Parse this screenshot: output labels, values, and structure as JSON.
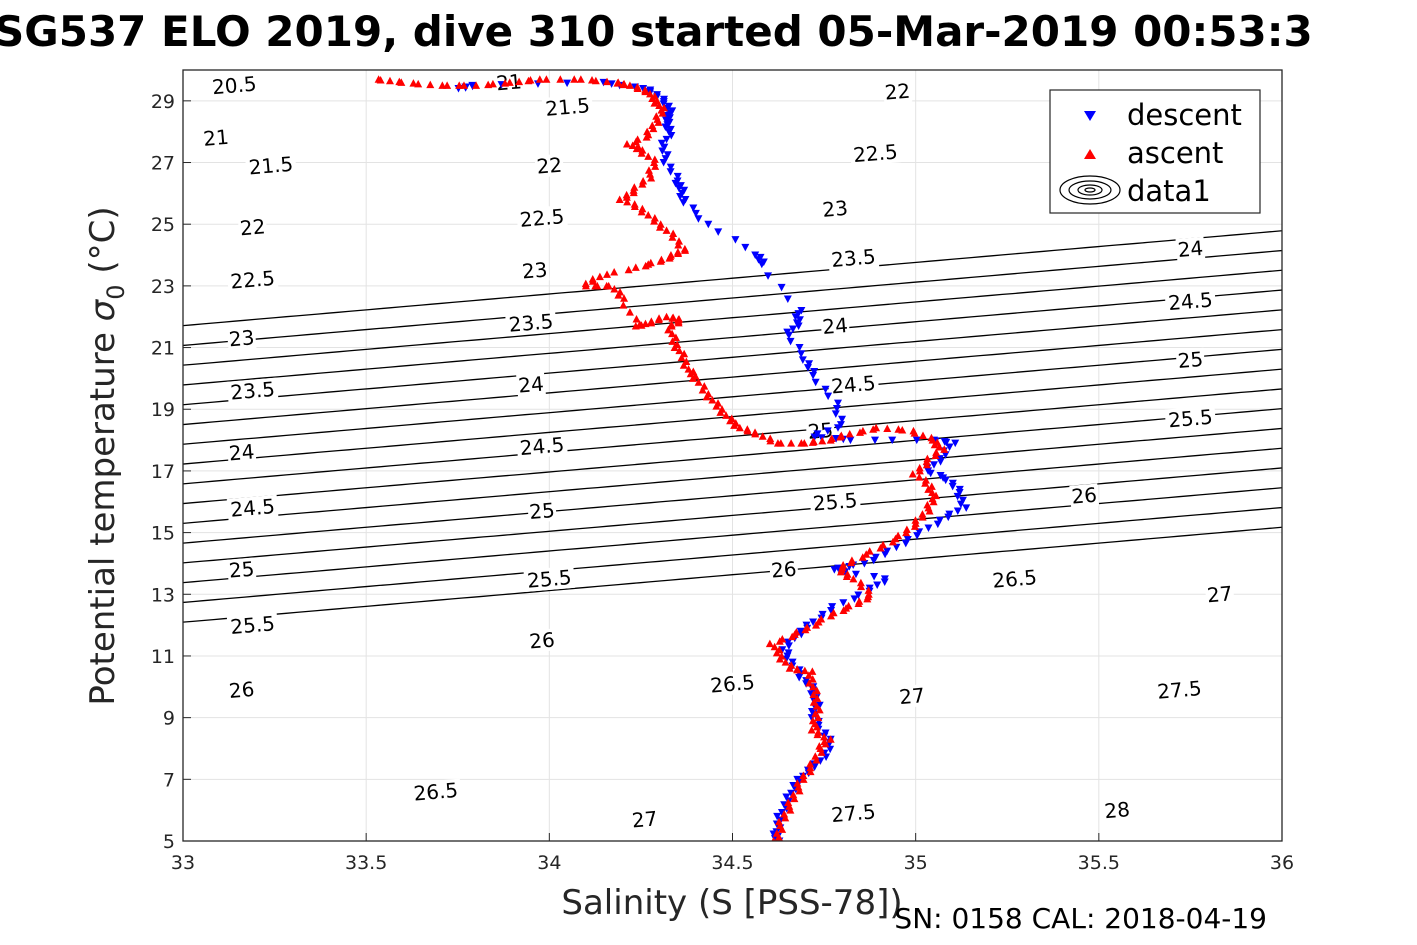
{
  "figure": {
    "title": "SG537 ELO 2019, dive 310 started 05-Mar-2019 00:53:3",
    "footer": "SN: 0158  CAL: 2018-04-19"
  },
  "chart_data": {
    "type": "scatter",
    "xlabel": "Salinity (S [PSS-78])",
    "ylabel_prefix": "Potential temperature ",
    "ylabel_symbol": "σ",
    "ylabel_subscript": "0",
    "ylabel_suffix": " (°C)",
    "xlim": [
      33,
      36
    ],
    "ylim": [
      5,
      30
    ],
    "xticks": [
      33,
      33.5,
      34,
      34.5,
      35,
      35.5,
      36
    ],
    "xtick_labels": [
      "33",
      "33.5",
      "34",
      "34.5",
      "35",
      "35.5",
      "36"
    ],
    "yticks": [
      5,
      7,
      9,
      11,
      13,
      15,
      17,
      19,
      21,
      23,
      25,
      27,
      29
    ],
    "ytick_labels": [
      "5",
      "7",
      "9",
      "11",
      "13",
      "15",
      "17",
      "19",
      "21",
      "23",
      "25",
      "27",
      "29"
    ],
    "grid": true,
    "legend_position": "top-right",
    "legend": [
      "descent",
      "ascent",
      "data1"
    ],
    "contours": {
      "name": "data1",
      "color": "#000000",
      "levels": [
        20.5,
        21,
        21.5,
        22,
        22.5,
        23,
        23.5,
        24,
        24.5,
        25,
        25.5,
        26,
        26.5,
        27,
        27.5,
        28
      ],
      "labels": [
        {
          "text": "20.5",
          "x": 33.14,
          "y": 29.5
        },
        {
          "text": "21",
          "x": 33.09,
          "y": 27.8
        },
        {
          "text": "21",
          "x": 33.89,
          "y": 29.6
        },
        {
          "text": "21.5",
          "x": 33.24,
          "y": 26.9
        },
        {
          "text": "21.5",
          "x": 34.05,
          "y": 28.8
        },
        {
          "text": "22",
          "x": 33.19,
          "y": 24.9
        },
        {
          "text": "22",
          "x": 34.0,
          "y": 26.9
        },
        {
          "text": "22",
          "x": 34.95,
          "y": 29.3
        },
        {
          "text": "22.5",
          "x": 33.19,
          "y": 23.2
        },
        {
          "text": "22.5",
          "x": 33.98,
          "y": 25.2
        },
        {
          "text": "22.5",
          "x": 34.89,
          "y": 27.3
        },
        {
          "text": "23",
          "x": 33.16,
          "y": 21.3
        },
        {
          "text": "23",
          "x": 33.96,
          "y": 23.5
        },
        {
          "text": "23",
          "x": 34.78,
          "y": 25.5
        },
        {
          "text": "23.5",
          "x": 33.19,
          "y": 19.6
        },
        {
          "text": "23.5",
          "x": 33.95,
          "y": 21.8
        },
        {
          "text": "23.5",
          "x": 34.83,
          "y": 23.9
        },
        {
          "text": "24",
          "x": 33.16,
          "y": 17.6
        },
        {
          "text": "24",
          "x": 33.95,
          "y": 19.8
        },
        {
          "text": "24",
          "x": 34.78,
          "y": 21.7
        },
        {
          "text": "24",
          "x": 35.75,
          "y": 24.2
        },
        {
          "text": "24.5",
          "x": 33.19,
          "y": 15.8
        },
        {
          "text": "24.5",
          "x": 33.98,
          "y": 17.8
        },
        {
          "text": "24.5",
          "x": 34.83,
          "y": 19.8
        },
        {
          "text": "24.5",
          "x": 35.75,
          "y": 22.5
        },
        {
          "text": "25",
          "x": 33.16,
          "y": 13.8
        },
        {
          "text": "25",
          "x": 33.98,
          "y": 15.7
        },
        {
          "text": "25",
          "x": 34.74,
          "y": 18.3
        },
        {
          "text": "25",
          "x": 35.75,
          "y": 20.6
        },
        {
          "text": "25.5",
          "x": 33.19,
          "y": 12.0
        },
        {
          "text": "25.5",
          "x": 34.0,
          "y": 13.5
        },
        {
          "text": "25.5",
          "x": 34.78,
          "y": 16.0
        },
        {
          "text": "25.5",
          "x": 35.75,
          "y": 18.7
        },
        {
          "text": "26",
          "x": 33.16,
          "y": 9.9
        },
        {
          "text": "26",
          "x": 33.98,
          "y": 11.5
        },
        {
          "text": "26",
          "x": 34.64,
          "y": 13.8
        },
        {
          "text": "26",
          "x": 35.46,
          "y": 16.2
        },
        {
          "text": "26.5",
          "x": 33.69,
          "y": 6.6
        },
        {
          "text": "26.5",
          "x": 34.5,
          "y": 10.1
        },
        {
          "text": "26.5",
          "x": 35.27,
          "y": 13.5
        },
        {
          "text": "27",
          "x": 34.26,
          "y": 5.7
        },
        {
          "text": "27",
          "x": 34.99,
          "y": 9.7
        },
        {
          "text": "27",
          "x": 35.83,
          "y": 13.0
        },
        {
          "text": "27.5",
          "x": 34.83,
          "y": 5.9
        },
        {
          "text": "27.5",
          "x": 35.72,
          "y": 9.9
        },
        {
          "text": "28",
          "x": 35.55,
          "y": 6.0
        }
      ]
    },
    "series": [
      {
        "name": "descent",
        "color": "#0000ff",
        "marker": "triangle-down",
        "points": [
          [
            33.76,
            29.4
          ],
          [
            33.79,
            29.5
          ],
          [
            34.14,
            29.6
          ],
          [
            34.26,
            29.4
          ],
          [
            34.29,
            29.2
          ],
          [
            34.32,
            28.9
          ],
          [
            34.33,
            28.6
          ],
          [
            34.32,
            28.3
          ],
          [
            34.33,
            28.0
          ],
          [
            34.31,
            27.5
          ],
          [
            34.32,
            27.0
          ],
          [
            34.35,
            26.4
          ],
          [
            34.36,
            26.1
          ],
          [
            34.37,
            25.7
          ],
          [
            34.43,
            25.0
          ],
          [
            34.57,
            24.0
          ],
          [
            34.58,
            23.7
          ],
          [
            34.68,
            22.2
          ],
          [
            34.68,
            21.8
          ],
          [
            34.65,
            21.4
          ],
          [
            34.7,
            20.6
          ],
          [
            34.72,
            20.1
          ],
          [
            34.78,
            19.2
          ],
          [
            34.8,
            18.5
          ],
          [
            34.72,
            18.1
          ],
          [
            34.83,
            18.0
          ],
          [
            35.05,
            18.0
          ],
          [
            35.1,
            17.9
          ],
          [
            35.07,
            17.4
          ],
          [
            35.03,
            17.0
          ],
          [
            35.09,
            16.7
          ],
          [
            35.12,
            16.3
          ],
          [
            35.13,
            15.8
          ],
          [
            35.07,
            15.4
          ],
          [
            35.0,
            14.9
          ],
          [
            34.93,
            14.4
          ],
          [
            34.86,
            14.0
          ],
          [
            34.77,
            13.8
          ],
          [
            34.92,
            13.5
          ],
          [
            34.87,
            13.1
          ],
          [
            34.78,
            12.6
          ],
          [
            34.72,
            12.1
          ],
          [
            34.68,
            11.7
          ],
          [
            34.64,
            11.2
          ],
          [
            34.66,
            10.8
          ],
          [
            34.69,
            10.3
          ],
          [
            34.72,
            9.9
          ],
          [
            34.73,
            9.4
          ],
          [
            34.72,
            9.0
          ],
          [
            34.75,
            8.5
          ],
          [
            34.77,
            8.1
          ],
          [
            34.74,
            7.6
          ],
          [
            34.7,
            7.2
          ],
          [
            34.67,
            6.8
          ],
          [
            34.65,
            6.3
          ],
          [
            34.63,
            5.8
          ],
          [
            34.62,
            5.3
          ],
          [
            34.62,
            5.0
          ]
        ]
      },
      {
        "name": "ascent",
        "color": "#ff0000",
        "marker": "triangle-up",
        "points": [
          [
            34.62,
            5.0
          ],
          [
            34.63,
            5.5
          ],
          [
            34.65,
            6.0
          ],
          [
            34.67,
            6.5
          ],
          [
            34.69,
            7.0
          ],
          [
            34.72,
            7.5
          ],
          [
            34.74,
            8.0
          ],
          [
            34.76,
            8.3
          ],
          [
            34.72,
            8.6
          ],
          [
            34.73,
            9.0
          ],
          [
            34.73,
            9.5
          ],
          [
            34.72,
            10.0
          ],
          [
            34.71,
            10.5
          ],
          [
            34.66,
            10.6
          ],
          [
            34.63,
            11.0
          ],
          [
            34.61,
            11.4
          ],
          [
            34.67,
            11.7
          ],
          [
            34.72,
            12.0
          ],
          [
            34.78,
            12.4
          ],
          [
            34.84,
            12.7
          ],
          [
            34.88,
            13.0
          ],
          [
            34.83,
            13.5
          ],
          [
            34.79,
            13.8
          ],
          [
            34.83,
            14.1
          ],
          [
            34.9,
            14.5
          ],
          [
            34.96,
            14.9
          ],
          [
            35.0,
            15.3
          ],
          [
            35.03,
            15.7
          ],
          [
            35.05,
            16.1
          ],
          [
            35.04,
            16.5
          ],
          [
            35.0,
            16.9
          ],
          [
            35.03,
            17.3
          ],
          [
            35.07,
            17.7
          ],
          [
            35.05,
            18.0
          ],
          [
            34.99,
            18.3
          ],
          [
            34.9,
            18.4
          ],
          [
            34.82,
            18.2
          ],
          [
            34.76,
            18.0
          ],
          [
            34.7,
            17.9
          ],
          [
            34.62,
            17.9
          ],
          [
            34.57,
            18.2
          ],
          [
            34.52,
            18.4
          ],
          [
            34.49,
            18.7
          ],
          [
            34.46,
            19.1
          ],
          [
            34.43,
            19.5
          ],
          [
            34.4,
            20.0
          ],
          [
            34.38,
            20.3
          ],
          [
            34.36,
            20.8
          ],
          [
            34.34,
            21.2
          ],
          [
            34.33,
            21.7
          ],
          [
            34.36,
            21.9
          ],
          [
            34.32,
            22.0
          ],
          [
            34.27,
            21.8
          ],
          [
            34.24,
            21.7
          ],
          [
            34.2,
            22.6
          ],
          [
            34.17,
            23.0
          ],
          [
            34.1,
            23.0
          ],
          [
            34.13,
            23.3
          ],
          [
            34.24,
            23.6
          ],
          [
            34.3,
            23.8
          ],
          [
            34.34,
            24.0
          ],
          [
            34.37,
            24.2
          ],
          [
            34.33,
            24.7
          ],
          [
            34.29,
            25.1
          ],
          [
            34.25,
            25.5
          ],
          [
            34.2,
            25.8
          ],
          [
            34.23,
            26.1
          ],
          [
            34.27,
            26.5
          ],
          [
            34.29,
            27.0
          ],
          [
            34.25,
            27.4
          ],
          [
            34.22,
            27.6
          ],
          [
            34.27,
            27.9
          ],
          [
            34.29,
            28.3
          ],
          [
            34.31,
            28.7
          ],
          [
            34.29,
            29.0
          ],
          [
            34.27,
            29.3
          ],
          [
            34.22,
            29.5
          ],
          [
            34.18,
            29.6
          ],
          [
            34.09,
            29.7
          ],
          [
            33.97,
            29.7
          ],
          [
            33.9,
            29.6
          ],
          [
            33.8,
            29.5
          ],
          [
            33.7,
            29.5
          ],
          [
            33.6,
            29.6
          ],
          [
            33.53,
            29.7
          ]
        ]
      }
    ]
  }
}
